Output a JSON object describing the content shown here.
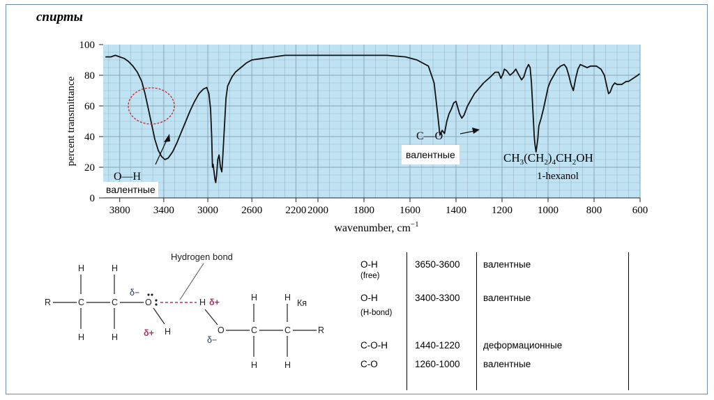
{
  "slide": {
    "title": "спирты"
  },
  "chart_data": {
    "type": "line",
    "xlabel": "wavenumber, cm",
    "xlabel_exponent": "−1",
    "ylabel": "percent transmittance",
    "xlim": [
      3950,
      600
    ],
    "ylim": [
      0,
      100
    ],
    "x_ticks": [
      3800,
      3400,
      3000,
      2600,
      2200,
      2000,
      1800,
      1600,
      1400,
      1200,
      1000,
      800,
      600
    ],
    "y_ticks": [
      0,
      20,
      40,
      60,
      80,
      100
    ],
    "grid": true,
    "background_color": "#bfe3f2",
    "line_color": "#111111",
    "compound_formula": "CH3(CH2)4CH2OH",
    "compound_name": "1-hexanol",
    "points": [
      [
        3930,
        92
      ],
      [
        3880,
        92
      ],
      [
        3840,
        93
      ],
      [
        3800,
        92
      ],
      [
        3760,
        91
      ],
      [
        3720,
        89
      ],
      [
        3680,
        86
      ],
      [
        3640,
        82
      ],
      [
        3600,
        76
      ],
      [
        3570,
        68
      ],
      [
        3540,
        58
      ],
      [
        3510,
        48
      ],
      [
        3480,
        38
      ],
      [
        3450,
        31
      ],
      [
        3420,
        27
      ],
      [
        3390,
        25
      ],
      [
        3360,
        26
      ],
      [
        3320,
        30
      ],
      [
        3280,
        36
      ],
      [
        3240,
        43
      ],
      [
        3200,
        50
      ],
      [
        3160,
        57
      ],
      [
        3120,
        63
      ],
      [
        3080,
        68
      ],
      [
        3040,
        71
      ],
      [
        3010,
        72
      ],
      [
        2990,
        68
      ],
      [
        2975,
        58
      ],
      [
        2965,
        40
      ],
      [
        2958,
        20
      ],
      [
        2952,
        22
      ],
      [
        2945,
        18
      ],
      [
        2935,
        12
      ],
      [
        2928,
        10
      ],
      [
        2920,
        15
      ],
      [
        2910,
        25
      ],
      [
        2898,
        28
      ],
      [
        2885,
        20
      ],
      [
        2873,
        17
      ],
      [
        2865,
        26
      ],
      [
        2850,
        45
      ],
      [
        2835,
        65
      ],
      [
        2820,
        73
      ],
      [
        2800,
        76
      ],
      [
        2780,
        79
      ],
      [
        2750,
        82
      ],
      [
        2700,
        85
      ],
      [
        2650,
        88
      ],
      [
        2600,
        90
      ],
      [
        2500,
        91
      ],
      [
        2400,
        92
      ],
      [
        2300,
        93
      ],
      [
        2200,
        93
      ],
      [
        2100,
        93
      ],
      [
        2000,
        93
      ],
      [
        1900,
        93
      ],
      [
        1800,
        93
      ],
      [
        1700,
        93
      ],
      [
        1620,
        92
      ],
      [
        1570,
        90
      ],
      [
        1520,
        86
      ],
      [
        1495,
        75
      ],
      [
        1480,
        55
      ],
      [
        1470,
        41
      ],
      [
        1460,
        44
      ],
      [
        1450,
        42
      ],
      [
        1440,
        50
      ],
      [
        1430,
        55
      ],
      [
        1420,
        58
      ],
      [
        1410,
        62
      ],
      [
        1400,
        63
      ],
      [
        1385,
        55
      ],
      [
        1375,
        52
      ],
      [
        1365,
        54
      ],
      [
        1350,
        60
      ],
      [
        1320,
        68
      ],
      [
        1280,
        75
      ],
      [
        1250,
        79
      ],
      [
        1230,
        82
      ],
      [
        1215,
        82
      ],
      [
        1205,
        78
      ],
      [
        1195,
        81
      ],
      [
        1190,
        84
      ],
      [
        1180,
        83
      ],
      [
        1165,
        80
      ],
      [
        1150,
        82
      ],
      [
        1140,
        84
      ],
      [
        1130,
        81
      ],
      [
        1115,
        77
      ],
      [
        1105,
        79
      ],
      [
        1095,
        84
      ],
      [
        1085,
        87
      ],
      [
        1078,
        85
      ],
      [
        1072,
        75
      ],
      [
        1065,
        55
      ],
      [
        1060,
        40
      ],
      [
        1057,
        35
      ],
      [
        1052,
        30
      ],
      [
        1045,
        38
      ],
      [
        1040,
        47
      ],
      [
        1030,
        52
      ],
      [
        1020,
        58
      ],
      [
        1010,
        65
      ],
      [
        1000,
        72
      ],
      [
        990,
        76
      ],
      [
        975,
        80
      ],
      [
        960,
        84
      ],
      [
        945,
        86
      ],
      [
        930,
        87
      ],
      [
        920,
        85
      ],
      [
        910,
        80
      ],
      [
        900,
        74
      ],
      [
        890,
        70
      ],
      [
        880,
        78
      ],
      [
        870,
        84
      ],
      [
        860,
        87
      ],
      [
        845,
        86
      ],
      [
        830,
        85
      ],
      [
        815,
        86
      ],
      [
        800,
        86
      ],
      [
        790,
        86
      ],
      [
        780,
        85
      ],
      [
        770,
        84
      ],
      [
        755,
        80
      ],
      [
        745,
        73
      ],
      [
        737,
        68
      ],
      [
        730,
        69
      ],
      [
        720,
        73
      ],
      [
        710,
        75
      ],
      [
        700,
        74
      ],
      [
        690,
        74
      ],
      [
        680,
        74
      ],
      [
        670,
        75
      ],
      [
        660,
        76
      ],
      [
        650,
        76
      ],
      [
        640,
        77
      ],
      [
        630,
        78
      ],
      [
        620,
        79
      ],
      [
        610,
        80
      ],
      [
        602,
        81
      ]
    ],
    "annotations": {
      "oh_bond": "O—H",
      "oh_label": "валентные",
      "co_bond": "C—O",
      "co_label": "валентные"
    }
  },
  "diagram": {
    "caption": "Hydrogen bond",
    "r_left": "R",
    "r_right": "R",
    "c_atom": "C",
    "h_atom": "H",
    "o_atom": "O",
    "delta_minus": "δ−",
    "delta_plus": "δ+",
    "extra": "Кя"
  },
  "table": {
    "rows": [
      {
        "bond": "O-H",
        "note": "(free)",
        "range": "3650-3600",
        "type": "валентные"
      },
      {
        "bond": "O-H",
        "note": "(H-bond)",
        "range": "3400-3300",
        "type": "валентные"
      },
      {
        "bond": "C-O-H",
        "note": "",
        "range": "1440-1220",
        "type": "деформационные"
      },
      {
        "bond": "C-O",
        "note": "",
        "range": "1260-1000",
        "type": "валентные"
      }
    ]
  }
}
